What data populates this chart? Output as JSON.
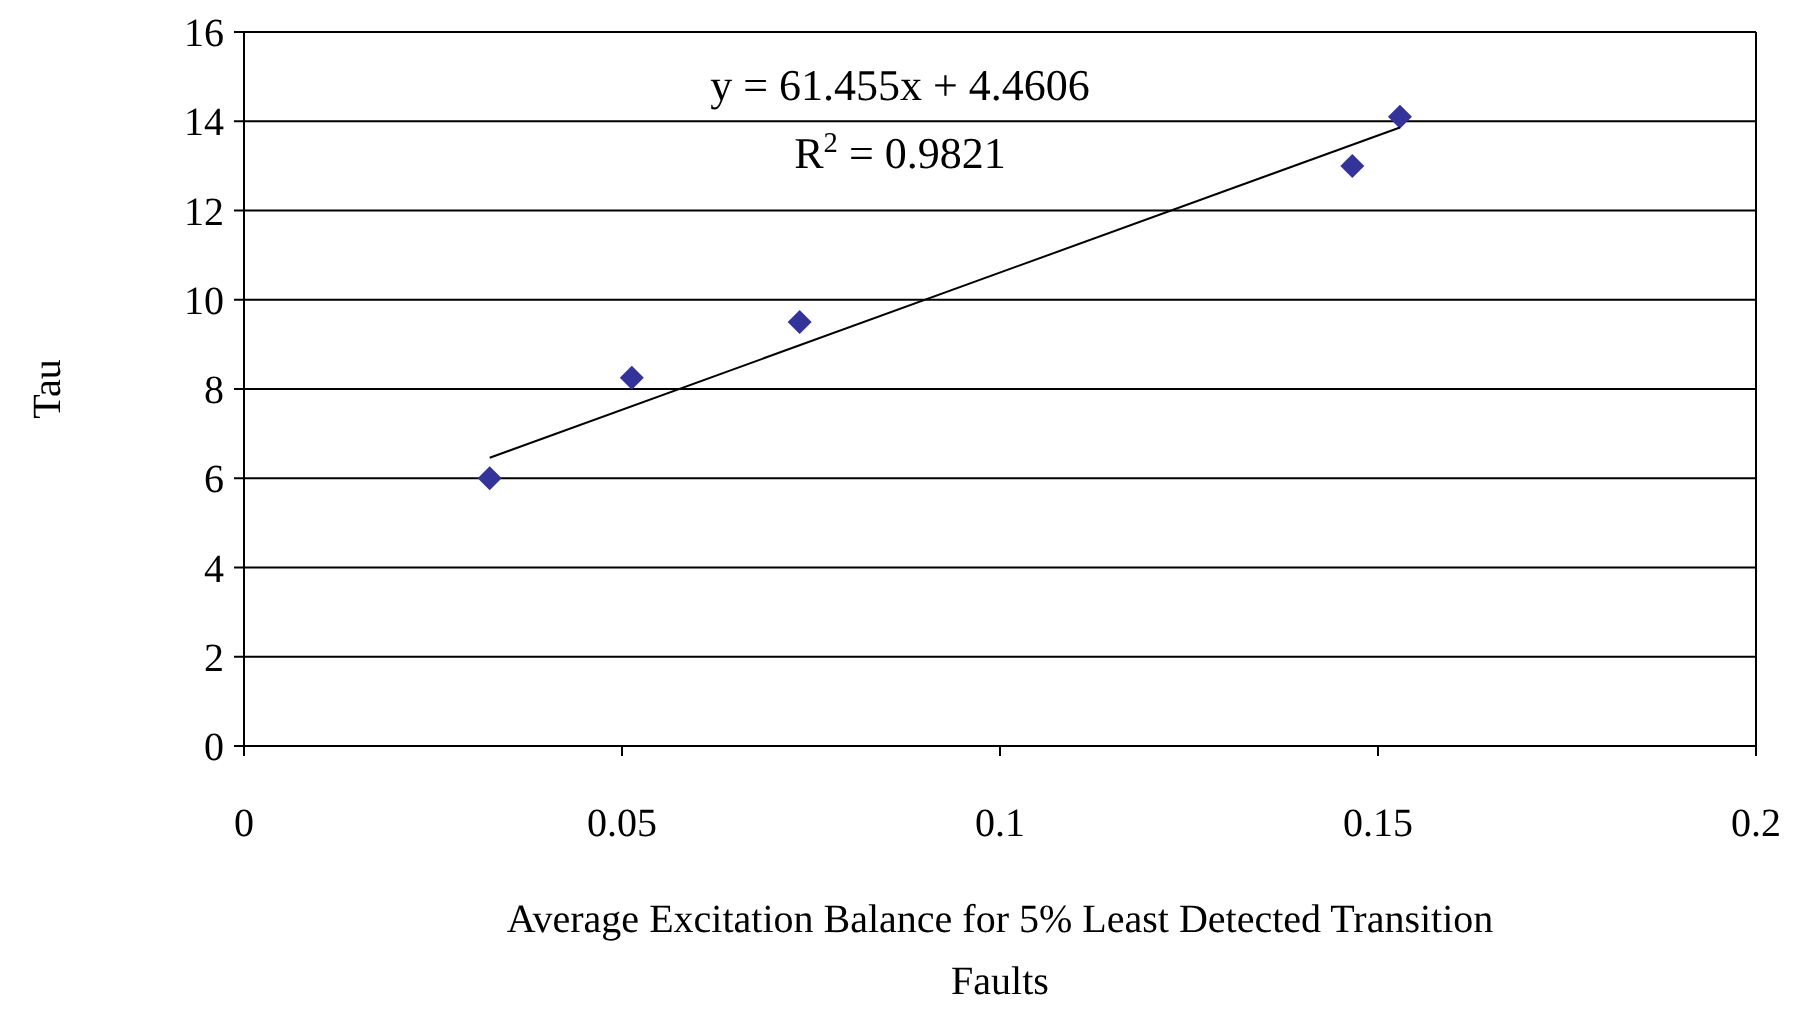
{
  "chart_data": {
    "type": "scatter",
    "xlabel": "Average Excitation Balance for 5% Least Detected Transition Faults",
    "ylabel": "Tau",
    "annotations": [
      "y = 61.455x + 4.4606",
      "R$^{2}$ = 0.9821"
    ],
    "series": [
      {
        "color": "#333399",
        "marker": "diamond",
        "x": [
          0.0325,
          0.0513,
          0.0735,
          0.1466,
          0.1529
        ],
        "values": [
          6.0,
          8.25,
          9.5,
          13.0,
          14.1
        ]
      },
      {
        "type": "line",
        "color": "#000000",
        "marker": "none",
        "x": [
          0.0325,
          0.1529
        ],
        "values": [
          6.46,
          13.86
        ]
      }
    ],
    "xlim": [
      0,
      0.2
    ],
    "xticks": [
      0,
      0.05,
      0.1,
      0.15,
      0.2
    ],
    "ylim": [
      0,
      16
    ],
    "yticks": [
      0,
      2,
      4,
      6,
      8,
      10,
      12,
      14,
      16
    ],
    "grid": "y"
  }
}
